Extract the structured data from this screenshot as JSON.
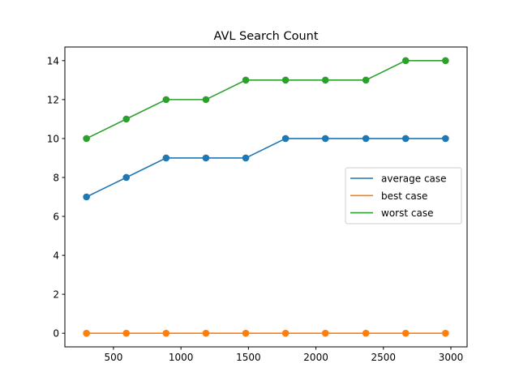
{
  "chart_data": {
    "type": "line",
    "title": "AVL Search Count",
    "xlabel": "",
    "ylabel": "",
    "x": [
      300,
      595,
      890,
      1185,
      1480,
      1775,
      2070,
      2370,
      2665,
      2960
    ],
    "xlim": [
      140,
      3120
    ],
    "ylim": [
      -0.7,
      14.7
    ],
    "xticks": [
      500,
      1000,
      1500,
      2000,
      2500,
      3000
    ],
    "yticks": [
      0,
      2,
      4,
      6,
      8,
      10,
      12,
      14
    ],
    "grid": false,
    "legend_position": "center-right",
    "markers": true,
    "series": [
      {
        "name": "average case",
        "color": "#1f77b4",
        "values": [
          7,
          8,
          9,
          9,
          9,
          10,
          10,
          10,
          10,
          10
        ]
      },
      {
        "name": "best case",
        "color": "#ff7f0e",
        "values": [
          0,
          0,
          0,
          0,
          0,
          0,
          0,
          0,
          0,
          0
        ]
      },
      {
        "name": "worst case",
        "color": "#2ca02c",
        "values": [
          10,
          11,
          12,
          12,
          13,
          13,
          13,
          13,
          14,
          14
        ]
      }
    ]
  }
}
